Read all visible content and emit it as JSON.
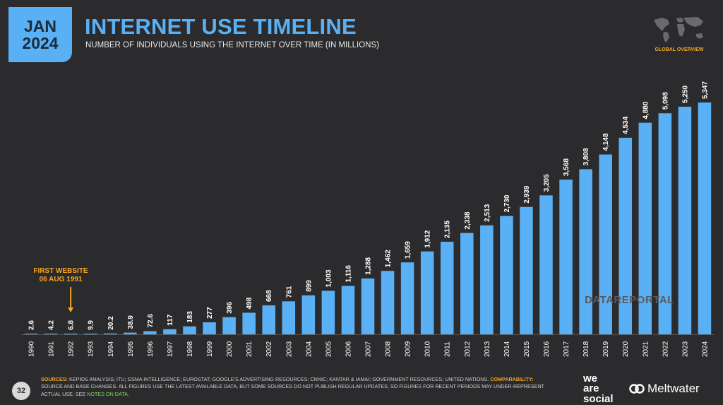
{
  "header": {
    "month": "JAN",
    "year": "2024",
    "title": "INTERNET USE TIMELINE",
    "subtitle": "NUMBER OF INDIVIDUALS USING THE INTERNET OVER TIME (IN MILLIONS)",
    "overview_label": "GLOBAL OVERVIEW"
  },
  "chart_data": {
    "type": "bar",
    "title": "INTERNET USE TIMELINE",
    "ylabel": "",
    "xlabel": "",
    "bar_color": "#5ab0f5",
    "categories": [
      "1990",
      "1991",
      "1992",
      "1993",
      "1994",
      "1995",
      "1996",
      "1997",
      "1998",
      "1999",
      "2000",
      "2001",
      "2002",
      "2003",
      "2004",
      "2005",
      "2006",
      "2007",
      "2008",
      "2009",
      "2010",
      "2011",
      "2012",
      "2013",
      "2014",
      "2015",
      "2016",
      "2017",
      "2018",
      "2019",
      "2020",
      "2021",
      "2022",
      "2023",
      "2024"
    ],
    "values": [
      2.6,
      4.2,
      6.8,
      9.9,
      20.2,
      38.9,
      72.6,
      117,
      183,
      277,
      396,
      498,
      668,
      761,
      899,
      1003,
      1116,
      1288,
      1462,
      1659,
      1912,
      2135,
      2338,
      2513,
      2730,
      2939,
      3205,
      3568,
      3808,
      4148,
      4534,
      4880,
      5098,
      5250,
      5347
    ],
    "labels": [
      "2.6",
      "4.2",
      "6.8",
      "9.9",
      "20.2",
      "38.9",
      "72.6",
      "117",
      "183",
      "277",
      "396",
      "498",
      "668",
      "761",
      "899",
      "1,003",
      "1,116",
      "1,288",
      "1,462",
      "1,659",
      "1,912",
      "2,135",
      "2,338",
      "2,513",
      "2,730",
      "2,939",
      "3,205",
      "3,568",
      "3,808",
      "4,148",
      "4,534",
      "4,880",
      "5,098",
      "5,250",
      "5,347"
    ],
    "ylim": [
      0,
      5347
    ],
    "grid": false,
    "annotation": {
      "lines": [
        "FIRST WEBSITE",
        "06 AUG 1991"
      ],
      "category": "1992"
    }
  },
  "watermark": "DATAREPORTAL",
  "footer": {
    "page_number": "32",
    "sources_label": "SOURCES:",
    "sources_text": "KEPIOS ANALYSIS; ITU; GSMA INTELLIGENCE; EUROSTAT; GOOGLE'S ADVERTISING RESOURCES; CNNIC; KANTAR & IAMAI; GOVERNMENT RESOURCES; UNITED NATIONS.",
    "comparability_label": "COMPARABILITY:",
    "comparability_text": "SOURCE AND BASE CHANGES. ALL FIGURES USE THE LATEST AVAILABLE DATA, BUT SOME SOURCES DO NOT PUBLISH REGULAR UPDATES, SO FIGURES FOR RECENT PERIODS MAY UNDER-REPRESENT ACTUAL USE. SEE",
    "notes_link": "NOTES ON DATA.",
    "logo_was": [
      "we",
      "are",
      "social"
    ],
    "logo_meltwater": "Meltwater"
  }
}
